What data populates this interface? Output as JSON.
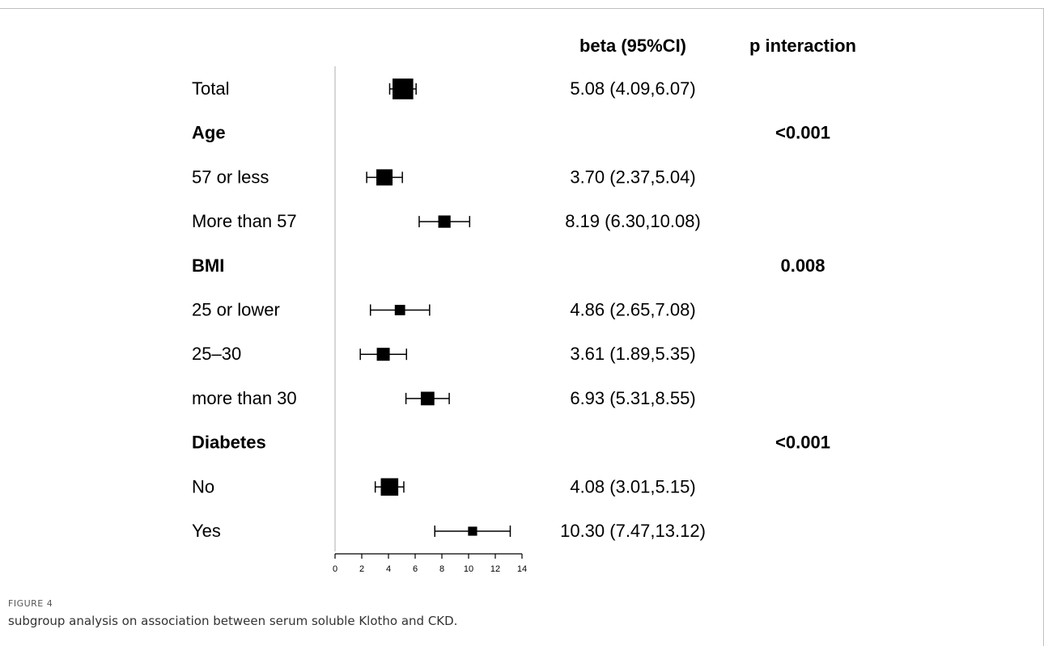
{
  "figure": {
    "label": "FIGURE 4",
    "caption": "subgroup analysis on association between serum soluble Klotho and CKD."
  },
  "chart_data": {
    "type": "forest",
    "title": "",
    "xlabel": "",
    "xlim": [
      0,
      14
    ],
    "xticks": [
      0,
      2,
      4,
      6,
      8,
      10,
      12,
      14
    ],
    "columns": {
      "estimate": "beta (95%CI)",
      "p": "p interaction"
    },
    "rows": [
      {
        "label": "Total",
        "header": false,
        "beta": 5.08,
        "lower": 4.09,
        "upper": 6.07,
        "text": "5.08 (4.09,6.07)",
        "weight": 1.6
      },
      {
        "label": "Age",
        "header": true,
        "p": "<0.001"
      },
      {
        "label": "57 or less",
        "header": false,
        "beta": 3.7,
        "lower": 2.37,
        "upper": 5.04,
        "text": "3.70 (2.37,5.04)",
        "weight": 1.25
      },
      {
        "label": "More than 57",
        "header": false,
        "beta": 8.19,
        "lower": 6.3,
        "upper": 10.08,
        "text": "8.19 (6.30,10.08)",
        "weight": 0.95
      },
      {
        "label": "BMI",
        "header": true,
        "p": "0.008"
      },
      {
        "label": "25 or lower",
        "header": false,
        "beta": 4.86,
        "lower": 2.65,
        "upper": 7.08,
        "text": "4.86 (2.65,7.08)",
        "weight": 0.8
      },
      {
        "label": "25–30",
        "header": false,
        "beta": 3.61,
        "lower": 1.89,
        "upper": 5.35,
        "text": "3.61 (1.89,5.35)",
        "weight": 1.0
      },
      {
        "label": "more than 30",
        "header": false,
        "beta": 6.93,
        "lower": 5.31,
        "upper": 8.55,
        "text": "6.93 (5.31,8.55)",
        "weight": 1.05
      },
      {
        "label": "Diabetes",
        "header": true,
        "p": "<0.001"
      },
      {
        "label": "No",
        "header": false,
        "beta": 4.08,
        "lower": 3.01,
        "upper": 5.15,
        "text": "4.08 (3.01,5.15)",
        "weight": 1.35
      },
      {
        "label": "Yes",
        "header": false,
        "beta": 10.3,
        "lower": 7.47,
        "upper": 13.12,
        "text": "10.30 (7.47,13.12)",
        "weight": 0.7
      }
    ]
  }
}
